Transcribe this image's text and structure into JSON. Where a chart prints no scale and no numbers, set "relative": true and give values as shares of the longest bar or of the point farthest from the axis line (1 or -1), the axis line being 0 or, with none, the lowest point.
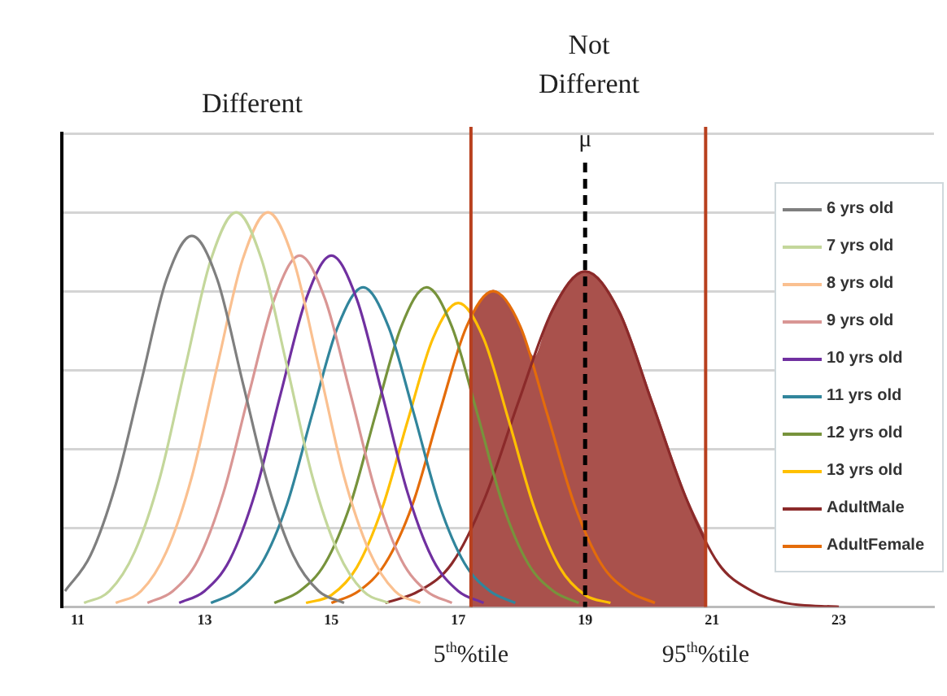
{
  "chart_data": {
    "type": "line",
    "relative": true,
    "xlim": [
      10.75,
      24.5
    ],
    "xticks": [
      11,
      13,
      15,
      17,
      19,
      21,
      23
    ],
    "grid": "y",
    "legend": "right",
    "marker": "none",
    "line_style": "solid",
    "annotations": [
      "Different",
      "Not Different"
    ],
    "series": [
      {
        "type": "area",
        "color": "#a9514c",
        "x": [
          17.2,
          17.55,
          17.9,
          18.2,
          18.48,
          19.0,
          19.53,
          20.05,
          20.58,
          20.9
        ],
        "values": [
          0.73,
          0.8,
          0.73,
          0.63,
          0.75,
          0.85,
          0.75,
          0.52,
          0.28,
          0.17
        ]
      },
      {
        "name": "6 yrs old",
        "color": "#7f7f7f",
        "x": [
          10.8,
          11.2,
          11.6,
          12.0,
          12.4,
          12.8,
          13.2,
          13.6,
          14.0,
          14.4,
          14.8,
          15.2
        ],
        "values": [
          0.04,
          0.13,
          0.31,
          0.57,
          0.83,
          0.94,
          0.83,
          0.57,
          0.31,
          0.13,
          0.04,
          0.01
        ]
      },
      {
        "name": "7 yrs old",
        "color": "#c4d79b",
        "x": [
          11.1,
          11.5,
          11.9,
          12.3,
          12.7,
          13.1,
          13.5,
          13.9,
          14.3,
          14.7,
          15.1,
          15.5,
          15.9
        ],
        "values": [
          0.01,
          0.04,
          0.14,
          0.33,
          0.61,
          0.88,
          1,
          0.88,
          0.61,
          0.33,
          0.14,
          0.04,
          0.01
        ]
      },
      {
        "name": "8 yrs old",
        "color": "#fac090",
        "x": [
          11.6,
          12.0,
          12.4,
          12.8,
          13.2,
          13.6,
          14.0,
          14.4,
          14.8,
          15.2,
          15.6,
          16.0,
          16.4
        ],
        "values": [
          0.01,
          0.04,
          0.14,
          0.33,
          0.61,
          0.88,
          1,
          0.88,
          0.61,
          0.33,
          0.14,
          0.04,
          0.01
        ]
      },
      {
        "name": "9 yrs old",
        "color": "#d99694",
        "x": [
          12.1,
          12.5,
          12.9,
          13.3,
          13.7,
          14.1,
          14.5,
          14.9,
          15.3,
          15.7,
          16.1,
          16.5,
          16.9
        ],
        "values": [
          0.01,
          0.04,
          0.12,
          0.29,
          0.54,
          0.78,
          0.89,
          0.78,
          0.54,
          0.29,
          0.12,
          0.04,
          0.01
        ]
      },
      {
        "name": "10 yrs old",
        "color": "#7030a0",
        "x": [
          12.6,
          13.0,
          13.4,
          13.8,
          14.2,
          14.6,
          15.0,
          15.4,
          15.8,
          16.2,
          16.6,
          17.0,
          17.4
        ],
        "values": [
          0.01,
          0.04,
          0.12,
          0.29,
          0.54,
          0.78,
          0.89,
          0.78,
          0.54,
          0.29,
          0.12,
          0.04,
          0.01
        ]
      },
      {
        "name": "11 yrs old",
        "color": "#31859c",
        "x": [
          13.1,
          13.5,
          13.9,
          14.3,
          14.7,
          15.1,
          15.5,
          15.9,
          16.3,
          16.7,
          17.1,
          17.5,
          17.9
        ],
        "values": [
          0.01,
          0.04,
          0.11,
          0.26,
          0.49,
          0.71,
          0.81,
          0.71,
          0.49,
          0.26,
          0.11,
          0.04,
          0.01
        ]
      },
      {
        "name": "12 yrs old",
        "color": "#77933c",
        "x": [
          14.1,
          14.5,
          14.9,
          15.3,
          15.7,
          16.1,
          16.5,
          16.9,
          17.3,
          17.7,
          18.1,
          18.5,
          18.9
        ],
        "values": [
          0.01,
          0.04,
          0.11,
          0.26,
          0.49,
          0.71,
          0.81,
          0.71,
          0.49,
          0.26,
          0.11,
          0.04,
          0.01
        ]
      },
      {
        "name": "13 yrs old",
        "color": "#ffc000",
        "x": [
          14.6,
          15.0,
          15.4,
          15.8,
          16.2,
          16.6,
          17.0,
          17.4,
          17.8,
          18.2,
          18.6,
          19.0,
          19.4
        ],
        "values": [
          0.01,
          0.03,
          0.1,
          0.25,
          0.47,
          0.68,
          0.77,
          0.68,
          0.47,
          0.25,
          0.1,
          0.03,
          0.01
        ]
      },
      {
        "name": "AdultMale",
        "color": "#8b2a2a",
        "x": [
          15.85,
          16.38,
          16.9,
          17.43,
          17.95,
          18.48,
          19.0,
          19.53,
          20.05,
          20.58,
          21.1,
          21.63,
          22.15,
          23.0
        ],
        "values": [
          0.01,
          0.04,
          0.11,
          0.28,
          0.52,
          0.75,
          0.85,
          0.75,
          0.52,
          0.28,
          0.11,
          0.04,
          0.01,
          0
        ]
      },
      {
        "name": "AdultFemale",
        "color": "#e46c0a",
        "x": [
          15.0,
          15.43,
          15.85,
          16.28,
          16.7,
          17.13,
          17.55,
          17.98,
          18.4,
          18.83,
          19.25,
          19.68,
          20.1
        ],
        "values": [
          0.01,
          0.04,
          0.11,
          0.26,
          0.49,
          0.71,
          0.8,
          0.71,
          0.49,
          0.26,
          0.11,
          0.04,
          0.01
        ]
      }
    ],
    "ref_lines": [
      {
        "axis": "x",
        "value": 17.2,
        "label": "5$^{th}$%tile",
        "color": "#b8401e"
      },
      {
        "axis": "x",
        "value": 20.9,
        "label": "95$^{th}$%tile",
        "color": "#b8401e"
      },
      {
        "axis": "x",
        "value": 19,
        "label": "μ",
        "color": "#000000",
        "line_style": "dashed"
      }
    ]
  }
}
